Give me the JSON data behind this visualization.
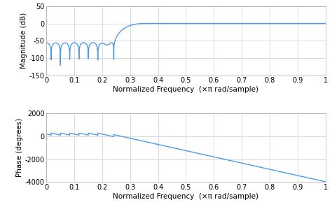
{
  "line_color": "#4C9BE8",
  "background_color": "#ffffff",
  "grid_color": "#cccccc",
  "mag_ylim": [
    -150,
    50
  ],
  "mag_yticks": [
    -150,
    -100,
    -50,
    0,
    50
  ],
  "phase_ylim": [
    -4000,
    2000
  ],
  "phase_yticks": [
    -4000,
    -2000,
    0,
    2000
  ],
  "xlim": [
    0,
    1
  ],
  "xticks": [
    0,
    0.1,
    0.2,
    0.3,
    0.4,
    0.5,
    0.6,
    0.7,
    0.8,
    0.9,
    1.0
  ],
  "xlabel": "Normalized Frequency  (×π rad/sample)",
  "mag_ylabel": "Magnitude (dB)",
  "phase_ylabel": "Phase (degrees)",
  "cutoff": 0.3,
  "filter_order": 60,
  "line_width": 1.0,
  "tick_fontsize": 7,
  "label_fontsize": 7.5
}
